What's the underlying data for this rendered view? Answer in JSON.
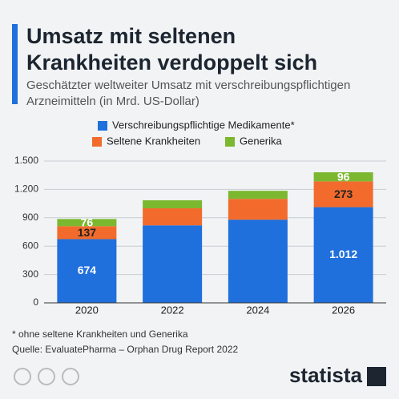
{
  "header": {
    "title_lines": [
      "Umsatz mit seltenen",
      "Krankheiten verdoppelt sich"
    ],
    "subtitle_lines": [
      "Geschätzter weltweiter Umsatz mit verschreibungspflichtigen",
      "Arzneimitteln (in Mrd. US-Dollar)"
    ]
  },
  "chart_data": {
    "type": "stacked-bar",
    "categories": [
      "2020",
      "2022",
      "2024",
      "2026"
    ],
    "series": [
      {
        "name": "Verschreibungspflichtige Medikamente*",
        "color": "#1f6fdc",
        "values": [
          674,
          820,
          880,
          1012
        ],
        "value_labels": [
          "674",
          null,
          null,
          "1.012"
        ]
      },
      {
        "name": "Seltene Krankheiten",
        "color": "#f26b2c",
        "values": [
          137,
          180,
          220,
          273
        ],
        "value_labels": [
          "137",
          null,
          null,
          "273"
        ]
      },
      {
        "name": "Generika",
        "color": "#7cb82f",
        "values": [
          76,
          85,
          85,
          96
        ],
        "value_labels": [
          "76",
          null,
          null,
          "96"
        ]
      }
    ],
    "ylim": [
      0,
      1500
    ],
    "yticks": [
      0,
      300,
      600,
      900,
      {
        "value": 1200,
        "label": "1.200"
      },
      {
        "value": 1500,
        "label": "1.500"
      }
    ],
    "grid": true
  },
  "footer": {
    "note": "* ohne seltene Krankheiten und Generika",
    "source": "Quelle: EvaluatePharma – Orphan Drug Report 2022",
    "brand": "statista"
  }
}
